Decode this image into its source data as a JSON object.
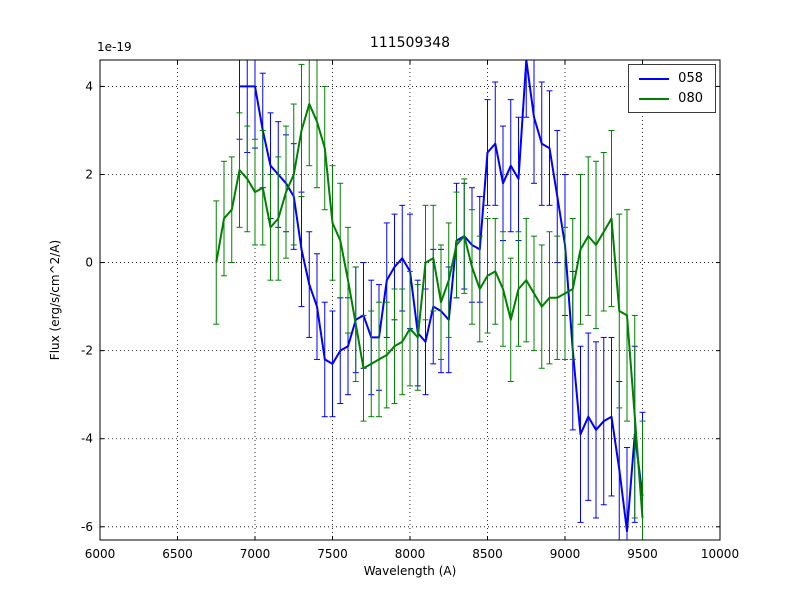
{
  "chart": {
    "title": "111509348",
    "offset_text": "1e-19",
    "xlabel": "Wavelength (A)",
    "ylabel": "Flux (erg/s/cm^2/A)"
  },
  "legend": {
    "items": [
      {
        "label": "058"
      },
      {
        "label": "080"
      }
    ]
  },
  "chart_data": {
    "type": "line",
    "title": "111509348",
    "xlabel": "Wavelength (A)",
    "ylabel": "Flux (erg/s/cm^2/A)",
    "y_offset_factor": "1e-19",
    "xlim": [
      6000,
      10000
    ],
    "ylim": [
      -6.3,
      4.6
    ],
    "xticks": [
      6000,
      6500,
      7000,
      7500,
      8000,
      8500,
      9000,
      9500,
      10000
    ],
    "yticks": [
      -6,
      -4,
      -2,
      0,
      2,
      4
    ],
    "grid": true,
    "grid_style": "dotted",
    "legend_position": "upper right",
    "error_bars": true,
    "series": [
      {
        "name": "058",
        "color": "#0000ff",
        "x": [
          6900,
          6950,
          7000,
          7050,
          7100,
          7150,
          7200,
          7250,
          7300,
          7350,
          7400,
          7450,
          7500,
          7550,
          7600,
          7650,
          7700,
          7750,
          7800,
          7850,
          7900,
          7950,
          8000,
          8050,
          8100,
          8150,
          8200,
          8250,
          8300,
          8350,
          8400,
          8450,
          8500,
          8550,
          8600,
          8650,
          8700,
          8750,
          8800,
          8850,
          8900,
          8950,
          9000,
          9050,
          9100,
          9150,
          9200,
          9250,
          9300,
          9350,
          9400,
          9450,
          9500
        ],
        "y": [
          4.0,
          4.0,
          4.0,
          3.0,
          2.2,
          2.0,
          1.8,
          1.5,
          0.3,
          -0.5,
          -1.0,
          -2.2,
          -2.3,
          -2.0,
          -1.9,
          -1.3,
          -1.2,
          -1.7,
          -1.7,
          -0.4,
          -0.1,
          0.1,
          -0.2,
          -1.6,
          -1.8,
          -1.0,
          -1.1,
          -1.3,
          0.5,
          0.6,
          0.4,
          0.3,
          2.5,
          2.7,
          1.8,
          2.2,
          1.9,
          4.6,
          3.3,
          2.7,
          2.6,
          1.5,
          0.4,
          -2.0,
          -3.9,
          -3.5,
          -3.8,
          -3.6,
          -3.5,
          -4.7,
          -6.1,
          -3.9,
          -5.3
        ],
        "yerr": [
          1.2,
          1.5,
          1.4,
          1.3,
          1.2,
          1.2,
          1.1,
          1.2,
          1.3,
          1.2,
          1.2,
          1.3,
          1.2,
          1.2,
          1.1,
          1.2,
          1.2,
          1.3,
          1.2,
          1.3,
          1.2,
          1.2,
          1.3,
          1.2,
          1.2,
          1.3,
          1.4,
          1.2,
          1.3,
          1.2,
          1.3,
          1.2,
          1.2,
          1.4,
          1.3,
          1.5,
          1.4,
          1.3,
          1.5,
          1.4,
          1.3,
          1.5,
          1.6,
          1.8,
          2.0,
          1.9,
          2.0,
          1.9,
          1.8,
          2.0,
          1.9,
          2.0,
          1.9
        ]
      },
      {
        "name": "080",
        "color": "#008000",
        "x": [
          6750,
          6800,
          6850,
          6900,
          6950,
          7000,
          7050,
          7100,
          7150,
          7200,
          7250,
          7300,
          7350,
          7400,
          7450,
          7500,
          7550,
          7600,
          7650,
          7700,
          7750,
          7800,
          7850,
          7900,
          7950,
          8000,
          8050,
          8100,
          8150,
          8200,
          8250,
          8300,
          8350,
          8400,
          8450,
          8500,
          8550,
          8600,
          8650,
          8700,
          8750,
          8800,
          8850,
          8900,
          8950,
          9000,
          9050,
          9100,
          9150,
          9200,
          9250,
          9300,
          9350,
          9400,
          9450,
          9500
        ],
        "y": [
          0.0,
          1.0,
          1.2,
          2.1,
          1.9,
          1.6,
          1.7,
          0.8,
          1.0,
          1.6,
          2.0,
          3.0,
          3.6,
          3.2,
          2.6,
          0.9,
          0.5,
          -0.4,
          -1.4,
          -2.4,
          -2.3,
          -2.2,
          -2.1,
          -1.9,
          -1.8,
          -1.5,
          -1.7,
          0.0,
          0.1,
          -0.9,
          -0.4,
          0.4,
          0.6,
          -0.1,
          -0.6,
          -0.3,
          -0.2,
          -0.6,
          -1.3,
          -0.6,
          -0.4,
          -0.7,
          -1.0,
          -0.8,
          -0.8,
          -0.7,
          -0.6,
          0.3,
          0.6,
          0.4,
          0.7,
          1.0,
          -1.1,
          -1.2,
          -3.5,
          -5.8
        ],
        "yerr": [
          1.4,
          1.3,
          1.2,
          1.3,
          1.2,
          1.2,
          1.3,
          1.2,
          1.4,
          1.5,
          1.6,
          1.5,
          1.4,
          1.5,
          1.4,
          1.3,
          1.3,
          1.2,
          1.3,
          1.2,
          1.2,
          1.3,
          1.2,
          1.3,
          1.2,
          1.3,
          1.2,
          1.3,
          1.2,
          1.3,
          1.3,
          1.2,
          1.3,
          1.3,
          1.2,
          1.3,
          1.2,
          1.3,
          1.4,
          1.3,
          1.4,
          1.3,
          1.4,
          1.5,
          1.4,
          1.5,
          1.6,
          1.7,
          1.8,
          1.9,
          1.8,
          2.0,
          2.2,
          2.4,
          2.3,
          2.2
        ]
      }
    ]
  }
}
